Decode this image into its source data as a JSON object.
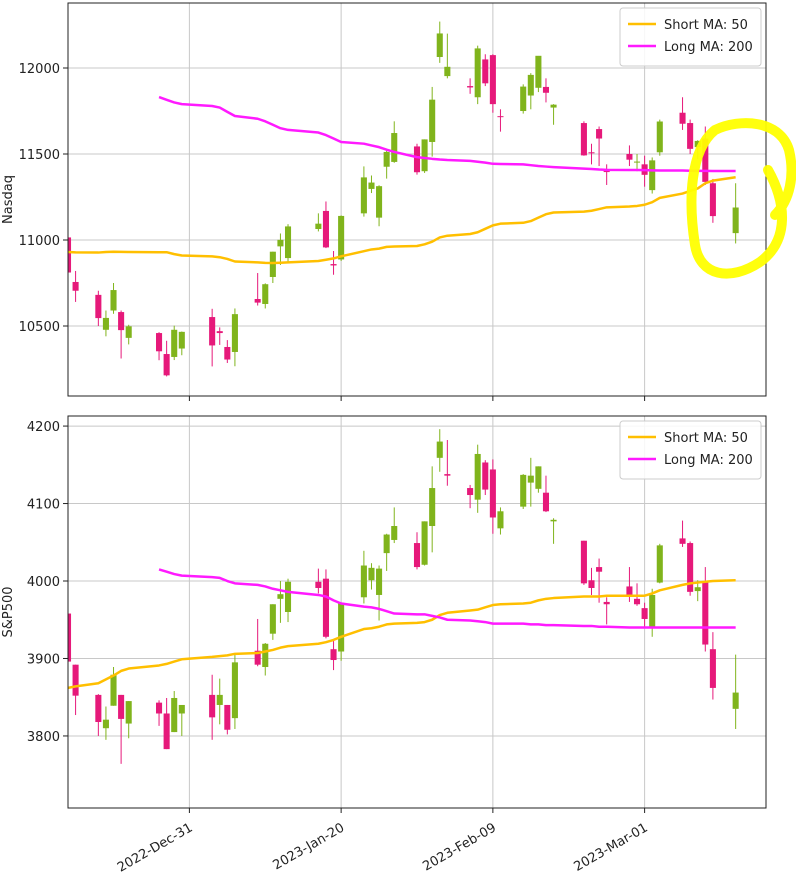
{
  "chart_data": [
    {
      "type": "candlestick",
      "y_label": "Nasdaq",
      "up_color": "#80b41c",
      "down_color": "#e6197a",
      "grid": true,
      "legend": "upper right",
      "xlim": [
        "2022-12-15",
        "2023-03-17"
      ],
      "ylim": [
        10093,
        12378
      ],
      "xticks": [
        "2022-12-31",
        "2023-01-20",
        "2023-02-09",
        "2023-03-01"
      ],
      "yticks": [
        10500,
        11000,
        11500,
        12000
      ],
      "x": [
        "2022-12-15",
        "2022-12-16",
        "2022-12-19",
        "2022-12-20",
        "2022-12-21",
        "2022-12-22",
        "2022-12-23",
        "2022-12-27",
        "2022-12-28",
        "2022-12-29",
        "2022-12-30",
        "2023-01-03",
        "2023-01-04",
        "2023-01-05",
        "2023-01-06",
        "2023-01-09",
        "2023-01-10",
        "2023-01-11",
        "2023-01-12",
        "2023-01-13",
        "2023-01-17",
        "2023-01-18",
        "2023-01-19",
        "2023-01-20",
        "2023-01-23",
        "2023-01-24",
        "2023-01-25",
        "2023-01-26",
        "2023-01-27",
        "2023-01-30",
        "2023-01-31",
        "2023-02-01",
        "2023-02-02",
        "2023-02-03",
        "2023-02-06",
        "2023-02-07",
        "2023-02-08",
        "2023-02-09",
        "2023-02-10",
        "2023-02-13",
        "2023-02-14",
        "2023-02-15",
        "2023-02-16",
        "2023-02-17",
        "2023-02-21",
        "2023-02-22",
        "2023-02-23",
        "2023-02-24",
        "2023-02-27",
        "2023-02-28",
        "2023-03-01",
        "2023-03-02",
        "2023-03-03",
        "2023-03-06",
        "2023-03-07",
        "2023-03-08",
        "2023-03-09",
        "2023-03-10",
        "2023-03-13"
      ],
      "open": [
        11015,
        10756,
        10681,
        10478,
        10590,
        10581,
        10431,
        10459,
        10337,
        10320,
        10369,
        10552,
        10470,
        10378,
        10349,
        10657,
        10628,
        10785,
        10963,
        10895,
        11064,
        11169,
        10860,
        10887,
        11155,
        11297,
        11130,
        11426,
        11454,
        11544,
        11400,
        11570,
        12064,
        11953,
        11895,
        11830,
        12050,
        12075,
        11720,
        11750,
        11840,
        11885,
        11890,
        11770,
        11680,
        11510,
        11645,
        11410,
        11500,
        11450,
        11440,
        11290,
        11510,
        11740,
        11680,
        11540,
        11590,
        11330,
        11040
      ],
      "high": [
        11045,
        10820,
        10705,
        10590,
        10750,
        10590,
        10507,
        10464,
        10414,
        10502,
        10468,
        10600,
        10492,
        10418,
        10602,
        10808,
        10748,
        10932,
        11038,
        11092,
        11155,
        11224,
        10936,
        11143,
        11428,
        11375,
        11318,
        11520,
        11690,
        11560,
        11585,
        11890,
        12270,
        12200,
        11940,
        12130,
        12080,
        12080,
        11760,
        11905,
        11970,
        12070,
        11940,
        11790,
        11690,
        11560,
        11660,
        11440,
        11550,
        11500,
        11490,
        11480,
        11700,
        11830,
        11700,
        11580,
        11660,
        11355,
        11330
      ],
      "low": [
        10785,
        10640,
        10500,
        10440,
        10571,
        10311,
        10393,
        10301,
        10207,
        10302,
        10330,
        10265,
        10390,
        10285,
        10266,
        10619,
        10602,
        10750,
        10855,
        10870,
        11050,
        10953,
        10798,
        10878,
        11136,
        11273,
        11080,
        11357,
        11449,
        11380,
        11390,
        11485,
        12030,
        11940,
        11850,
        11790,
        11895,
        11740,
        11630,
        11735,
        11760,
        11860,
        11800,
        11670,
        11490,
        11440,
        11430,
        11320,
        11430,
        11400,
        11310,
        11270,
        11490,
        11640,
        11500,
        11470,
        11320,
        11100,
        10980
      ],
      "close": [
        10811,
        10705,
        10546,
        10547,
        10709,
        10476,
        10498,
        10353,
        10213,
        10478,
        10466,
        10387,
        10459,
        10305,
        10569,
        10636,
        10743,
        10932,
        11001,
        11079,
        11095,
        10957,
        10852,
        11140,
        11364,
        11334,
        11313,
        11512,
        11622,
        11394,
        11585,
        11816,
        12201,
        12007,
        11887,
        12114,
        11911,
        11790,
        11718,
        11892,
        11960,
        12071,
        11856,
        11787,
        11492,
        11507,
        11590,
        11395,
        11467,
        11456,
        11379,
        11463,
        11689,
        11676,
        11530,
        11576,
        11338,
        11139,
        11189
      ],
      "series": [
        {
          "name": "Short MA: 50",
          "color": "#ffbf00",
          "values": [
            10930,
            10928,
            10927,
            10930,
            10932,
            10931,
            10930,
            10929,
            10929,
            10918,
            10910,
            10905,
            10900,
            10890,
            10875,
            10870,
            10867,
            10866,
            10868,
            10870,
            10878,
            10885,
            10893,
            10905,
            10935,
            10945,
            10950,
            10960,
            10962,
            10965,
            10975,
            10990,
            11015,
            11025,
            11035,
            11045,
            11065,
            11085,
            11095,
            11100,
            11110,
            11130,
            11150,
            11160,
            11165,
            11170,
            11180,
            11190,
            11195,
            11198,
            11205,
            11220,
            11245,
            11270,
            11285,
            11300,
            11330,
            11345,
            11365
          ]
        },
        {
          "name": "Long MA: 200",
          "color": "#ff1aff",
          "values": [
            null,
            null,
            null,
            null,
            null,
            null,
            null,
            11831,
            11815,
            11800,
            11790,
            11779,
            11770,
            11745,
            11721,
            11705,
            11690,
            11670,
            11650,
            11640,
            11625,
            11610,
            11590,
            11570,
            11560,
            11550,
            11540,
            11525,
            11512,
            11482,
            11477,
            11472,
            11468,
            11465,
            11460,
            11455,
            11450,
            11443,
            11442,
            11440,
            11435,
            11430,
            11427,
            11424,
            11415,
            11413,
            11410,
            11408,
            11407,
            11407,
            11406,
            11405,
            11404,
            11404,
            11403,
            11402,
            11402,
            11401,
            11401
          ]
        }
      ]
    },
    {
      "type": "candlestick",
      "y_label": "S&P500",
      "up_color": "#80b41c",
      "down_color": "#e6197a",
      "grid": true,
      "legend": "upper right",
      "xlim": [
        "2022-12-15",
        "2023-03-17"
      ],
      "ylim": [
        3707,
        4213
      ],
      "xticks": [
        {
          "value": "2022-12-31",
          "label": "2022-Dec-31"
        },
        {
          "value": "2023-01-20",
          "label": "2023-Jan-20"
        },
        {
          "value": "2023-02-09",
          "label": "2023-Feb-09"
        },
        {
          "value": "2023-03-01",
          "label": "2023-Mar-01"
        }
      ],
      "yticks": [
        3800,
        3900,
        4000,
        4100,
        4200
      ],
      "x": [
        "2022-12-15",
        "2022-12-16",
        "2022-12-19",
        "2022-12-20",
        "2022-12-21",
        "2022-12-22",
        "2022-12-23",
        "2022-12-27",
        "2022-12-28",
        "2022-12-29",
        "2022-12-30",
        "2023-01-03",
        "2023-01-04",
        "2023-01-05",
        "2023-01-06",
        "2023-01-09",
        "2023-01-10",
        "2023-01-11",
        "2023-01-12",
        "2023-01-13",
        "2023-01-17",
        "2023-01-18",
        "2023-01-19",
        "2023-01-20",
        "2023-01-23",
        "2023-01-24",
        "2023-01-25",
        "2023-01-26",
        "2023-01-27",
        "2023-01-30",
        "2023-01-31",
        "2023-02-01",
        "2023-02-02",
        "2023-02-03",
        "2023-02-06",
        "2023-02-07",
        "2023-02-08",
        "2023-02-09",
        "2023-02-10",
        "2023-02-13",
        "2023-02-14",
        "2023-02-15",
        "2023-02-16",
        "2023-02-17",
        "2023-02-21",
        "2023-02-22",
        "2023-02-23",
        "2023-02-24",
        "2023-02-27",
        "2023-02-28",
        "2023-03-01",
        "2023-03-02",
        "2023-03-03",
        "2023-03-06",
        "2023-03-07",
        "2023-03-08",
        "2023-03-09",
        "2023-03-10",
        "2023-03-13"
      ],
      "open": [
        3958,
        3892,
        3853,
        3810,
        3839,
        3853,
        3816,
        3843,
        3829,
        3805,
        3829,
        3853,
        3840,
        3840,
        3823,
        3910,
        3889,
        3932,
        3977,
        3960,
        3999,
        4003,
        3912,
        3909,
        3979,
        4001,
        3982,
        4036,
        4053,
        4049,
        4021,
        4071,
        4159,
        4138,
        4120,
        4105,
        4153,
        4144,
        4068,
        4096,
        4127,
        4119,
        4114,
        4077,
        4052,
        4001,
        4018,
        3973,
        3993,
        3977,
        3965,
        3939,
        3998,
        4055,
        4049,
        3987,
        3998,
        3912,
        3835
      ],
      "high": [
        3958,
        3892,
        3854,
        3838,
        3889,
        3853,
        3845,
        3846,
        3849,
        3858,
        3839,
        3879,
        3874,
        3840,
        3906,
        3951,
        3920,
        3970,
        4000,
        4003,
        4016,
        4015,
        3923,
        3972,
        4039,
        4023,
        4020,
        4061,
        4095,
        4063,
        4077,
        4148,
        4196,
        4182,
        4124,
        4176,
        4156,
        4157,
        4095,
        4138,
        4159,
        4148,
        4136,
        4081,
        4052,
        4017,
        4029,
        3979,
        4018,
        3997,
        3972,
        3990,
        4048,
        4078,
        4051,
        4001,
        4018,
        3934,
        3905
      ],
      "low": [
        3879,
        3827,
        3800,
        3795,
        3839,
        3764,
        3797,
        3813,
        3783,
        3805,
        3800,
        3795,
        3815,
        3802,
        3809,
        3890,
        3878,
        3924,
        3946,
        3947,
        3984,
        3926,
        3885,
        3897,
        3971,
        3989,
        3949,
        4013,
        4049,
        4015,
        4020,
        4037,
        4141,
        4123,
        4094,
        4088,
        4111,
        4061,
        4060,
        4093,
        4096,
        4114,
        4089,
        4048,
        3995,
        3982,
        3972,
        3944,
        3973,
        3968,
        3939,
        3928,
        3997,
        4044,
        3981,
        3974,
        3909,
        3847,
        3809
      ],
      "close": [
        3896,
        3852,
        3818,
        3821,
        3879,
        3822,
        3845,
        3829,
        3783,
        3849,
        3840,
        3824,
        3853,
        3808,
        3895,
        3892,
        3919,
        3970,
        3983,
        3999,
        3991,
        3928,
        3898,
        3972,
        4020,
        4017,
        4016,
        4060,
        4071,
        4018,
        4077,
        4120,
        4180,
        4136,
        4111,
        4164,
        4118,
        4082,
        4090,
        4137,
        4136,
        4148,
        4090,
        4079,
        3997,
        3991,
        4012,
        3970,
        3982,
        3970,
        3951,
        3982,
        4046,
        4048,
        3986,
        3992,
        3918,
        3862,
        3856
      ],
      "series": [
        {
          "name": "Short MA: 50",
          "color": "#ffbf00",
          "values": [
            3862,
            3864,
            3868,
            3873,
            3878,
            3884,
            3887,
            3891,
            3893,
            3896,
            3899,
            3902,
            3903,
            3904,
            3906,
            3907,
            3909,
            3911,
            3914,
            3916,
            3919,
            3921,
            3924,
            3928,
            3938,
            3939,
            3941,
            3944,
            3945,
            3946,
            3947,
            3950,
            3956,
            3959,
            3962,
            3963,
            3966,
            3969,
            3970,
            3971,
            3972,
            3975,
            3977,
            3978,
            3980,
            3980,
            3980,
            3981,
            3981,
            3981,
            3981,
            3984,
            3988,
            3995,
            3997,
            3998,
            3999,
            4000,
            4001
          ]
        },
        {
          "name": "Long MA: 200",
          "color": "#ff1aff",
          "values": [
            null,
            null,
            null,
            null,
            null,
            null,
            null,
            4015,
            4012,
            4009,
            4007,
            4005,
            4004,
            4000,
            3997,
            3995,
            3993,
            3990,
            3988,
            3986,
            3982,
            3980,
            3975,
            3971,
            3967,
            3966,
            3964,
            3961,
            3958,
            3957,
            3957,
            3955,
            3953,
            3950,
            3949,
            3948,
            3947,
            3945,
            3945,
            3945,
            3944,
            3944,
            3943,
            3943,
            3942,
            3942,
            3941,
            3941,
            3940,
            3940,
            3940,
            3940,
            3940,
            3940,
            3940,
            3940,
            3940,
            3940,
            3940
          ]
        }
      ]
    }
  ]
}
